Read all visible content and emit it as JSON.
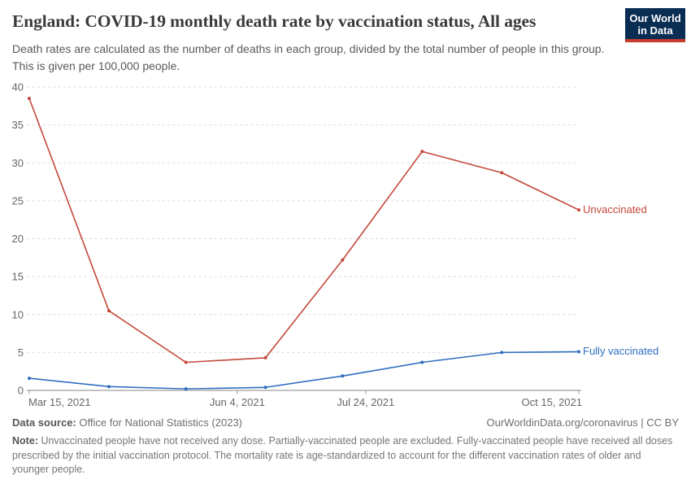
{
  "header": {
    "title": "England: COVID-19 monthly death rate by vaccination status, All ages",
    "subtitle": "Death rates are calculated as the number of deaths in each group, divided by the total number of people in this group. This is given per 100,000 people.",
    "logo_line1": "Our World",
    "logo_line2": "in Data"
  },
  "chart_data": {
    "type": "line",
    "title": "England: COVID-19 monthly death rate by vaccination status, All ages",
    "x": [
      "Mar 15, 2021",
      "Apr 15, 2021",
      "May 15, 2021",
      "Jun 15, 2021",
      "Jul 15, 2021",
      "Aug 15, 2021",
      "Sep 15, 2021",
      "Oct 15, 2021"
    ],
    "x_day_offsets": [
      0,
      31,
      61,
      92,
      122,
      153,
      184,
      214
    ],
    "series": [
      {
        "name": "Unvaccinated",
        "color": "#c4483b",
        "values": [
          38.5,
          10.5,
          3.7,
          4.3,
          17.2,
          31.5,
          28.7,
          23.8
        ]
      },
      {
        "name": "Fully vaccinated",
        "color": "#2f6ebf",
        "values": [
          1.6,
          0.5,
          0.2,
          0.4,
          1.9,
          3.7,
          5.0,
          5.1
        ]
      }
    ],
    "ylim": [
      0,
      40
    ],
    "yticks": [
      0,
      5,
      10,
      15,
      20,
      25,
      30,
      35,
      40
    ],
    "xticks": [
      {
        "label": "Mar 15, 2021",
        "day": 0,
        "anchor": "start"
      },
      {
        "label": "Jun 4, 2021",
        "day": 81,
        "anchor": "middle"
      },
      {
        "label": "Jul 24, 2021",
        "day": 131,
        "anchor": "middle"
      },
      {
        "label": "Oct 15, 2021",
        "day": 214,
        "anchor": "end"
      }
    ],
    "grid": "horizontal-dashed",
    "legend_position": "line-end-labels",
    "colors": {
      "grid": "#dcdcdc",
      "axis": "#9e9e9e",
      "tick_label": "#666666"
    }
  },
  "footer": {
    "source_label": "Data source:",
    "source_value": "Office for National Statistics (2023)",
    "attribution": "OurWorldinData.org/coronavirus | CC BY",
    "note_label": "Note:",
    "note_value": "Unvaccinated people have not received any dose. Partially-vaccinated people are excluded. Fully-vaccinated people have received all doses prescribed by the initial vaccination protocol. The mortality rate is age-standardized to account for the different vaccination rates of older and younger people."
  }
}
